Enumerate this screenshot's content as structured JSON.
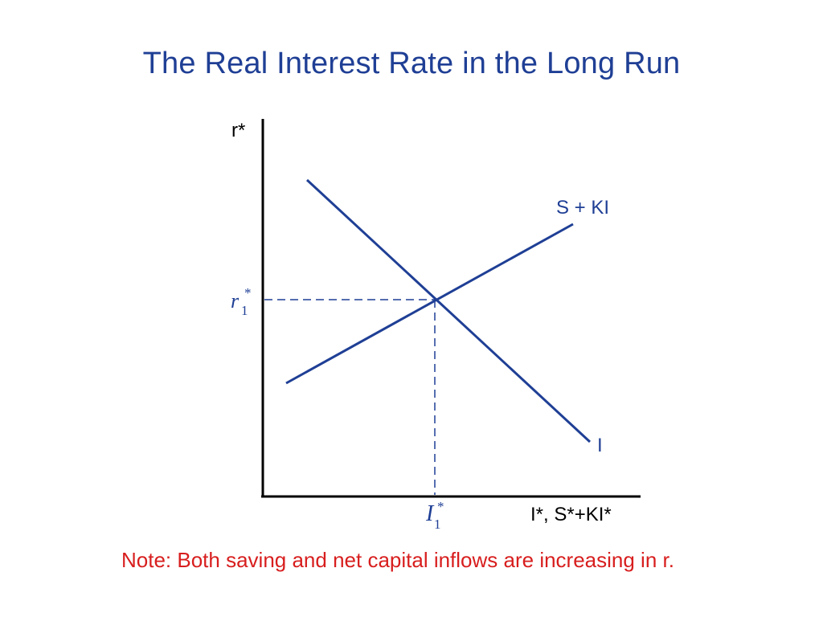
{
  "title": "The Real Interest Rate in the Long Run",
  "axes": {
    "y_label": "r*",
    "x_label": "I*, S*+KI*"
  },
  "curves": {
    "supply_label": "S + KI",
    "demand_label": "I"
  },
  "equilibrium": {
    "r_symbol": "r",
    "r_subscript": "1",
    "r_superscript": "*",
    "i_symbol": "I",
    "i_subscript": "1",
    "i_superscript": "*"
  },
  "note": "Note: Both saving and net capital inflows are increasing in r.",
  "colors": {
    "title": "#1f3f95",
    "curve": "#1f3f95",
    "axis": "#000000",
    "note": "#d81e1e"
  }
}
